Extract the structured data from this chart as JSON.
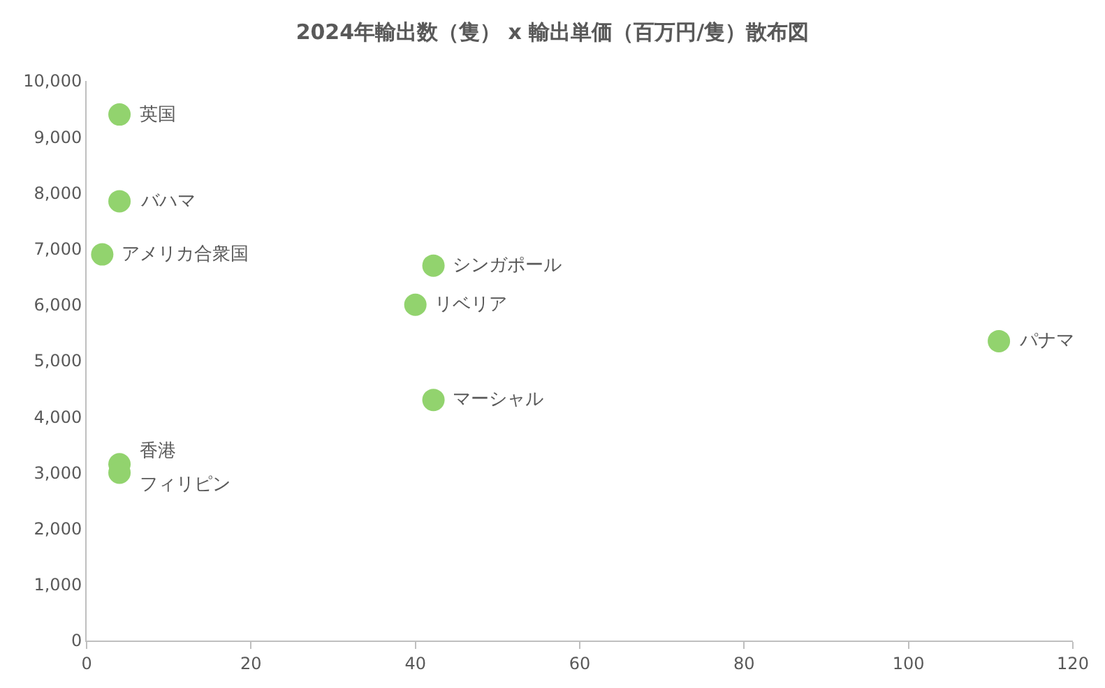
{
  "chart_data": {
    "type": "scatter",
    "title": "2024年輸出数（隻） x 輸出単価（百万円/隻）散布図",
    "x": [
      4,
      4,
      1.9,
      42.2,
      40,
      111,
      42.2,
      4,
      4
    ],
    "values": [
      9400,
      7850,
      6900,
      6700,
      6000,
      5350,
      4300,
      3150,
      3000
    ],
    "color": "#92d36e",
    "marker": "circle",
    "grid": false,
    "xlim": [
      0,
      120
    ],
    "xticks": [
      0,
      20,
      40,
      60,
      80,
      100,
      120
    ],
    "ylim": [
      0,
      10000
    ],
    "yticks": [
      {
        "value": 0,
        "label": "0"
      },
      {
        "value": 1000,
        "label": "1,000"
      },
      {
        "value": 2000,
        "label": "2,000"
      },
      {
        "value": 3000,
        "label": "3,000"
      },
      {
        "value": 4000,
        "label": "4,000"
      },
      {
        "value": 5000,
        "label": "5,000"
      },
      {
        "value": 6000,
        "label": "6,000"
      },
      {
        "value": 7000,
        "label": "7,000"
      },
      {
        "value": 8000,
        "label": "8,000"
      },
      {
        "value": 9000,
        "label": "9,000"
      },
      {
        "value": 10000,
        "label": "10,000"
      }
    ],
    "annotations": [
      {
        "text": "英国",
        "x": 4,
        "y": 9400
      },
      {
        "text": "バハマ",
        "x": 4,
        "y": 7850
      },
      {
        "text": "アメリカ合衆国",
        "x": 1.9,
        "y": 6900
      },
      {
        "text": "シンガポール",
        "x": 42.2,
        "y": 6700
      },
      {
        "text": "リベリア",
        "x": 40,
        "y": 6000
      },
      {
        "text": "パナマ",
        "x": 111,
        "y": 5350
      },
      {
        "text": "マーシャル",
        "x": 42.2,
        "y": 4300
      },
      {
        "text": "香港",
        "x": 4,
        "y": 3150
      },
      {
        "text": "フィリピン",
        "x": 4,
        "y": 3000
      }
    ]
  }
}
